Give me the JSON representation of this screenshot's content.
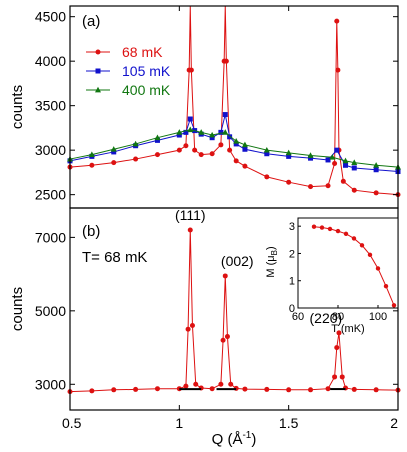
{
  "chart_data": [
    {
      "panel": "(a)",
      "type": "line",
      "ylabel": "counts",
      "xlim": [
        0.5,
        2.0
      ],
      "ylim": [
        2350,
        4620
      ],
      "yticks": [
        2500,
        3000,
        3500,
        4000,
        4500
      ],
      "legend": "top-left",
      "series": [
        {
          "name": "68 mK",
          "color": "#dd1111",
          "marker": "circle",
          "x": [
            0.5,
            0.6,
            0.7,
            0.8,
            0.9,
            1.0,
            1.03,
            1.045,
            1.05,
            1.055,
            1.07,
            1.1,
            1.15,
            1.19,
            1.205,
            1.21,
            1.215,
            1.23,
            1.26,
            1.3,
            1.4,
            1.5,
            1.6,
            1.68,
            1.71,
            1.72,
            1.725,
            1.73,
            1.75,
            1.8,
            1.9,
            2.0
          ],
          "y": [
            2810,
            2830,
            2860,
            2900,
            2950,
            3000,
            3050,
            3900,
            4620,
            3900,
            3000,
            2950,
            2960,
            3060,
            4000,
            4620,
            4000,
            3000,
            2880,
            2820,
            2700,
            2640,
            2590,
            2600,
            2850,
            4450,
            3900,
            3000,
            2650,
            2550,
            2520,
            2500
          ]
        },
        {
          "name": "105 mK",
          "color": "#1111cc",
          "marker": "square",
          "x": [
            0.5,
            0.6,
            0.7,
            0.8,
            0.9,
            1.0,
            1.03,
            1.05,
            1.07,
            1.1,
            1.15,
            1.19,
            1.21,
            1.23,
            1.26,
            1.3,
            1.4,
            1.5,
            1.6,
            1.68,
            1.72,
            1.76,
            1.8,
            1.9,
            2.0
          ],
          "y": [
            2880,
            2930,
            2980,
            3050,
            3110,
            3170,
            3200,
            3350,
            3220,
            3180,
            3140,
            3200,
            3400,
            3150,
            3070,
            3010,
            2960,
            2930,
            2910,
            2890,
            3000,
            2830,
            2800,
            2780,
            2760
          ]
        },
        {
          "name": "400 mK",
          "color": "#117711",
          "marker": "triangle",
          "x": [
            0.5,
            0.6,
            0.7,
            0.8,
            0.9,
            1.0,
            1.05,
            1.1,
            1.15,
            1.21,
            1.26,
            1.3,
            1.4,
            1.5,
            1.6,
            1.7,
            1.76,
            1.8,
            1.9,
            2.0
          ],
          "y": [
            2900,
            2950,
            3010,
            3070,
            3140,
            3200,
            3230,
            3200,
            3170,
            3200,
            3100,
            3060,
            3000,
            2970,
            2940,
            2920,
            2880,
            2860,
            2830,
            2810
          ]
        }
      ]
    },
    {
      "panel": "(b)",
      "type": "line",
      "annotation": "T= 68 mK",
      "xlabel_main": "Q (Å",
      "xlabel_sup": "-1",
      "xlabel_close": ")",
      "ylabel": "counts",
      "xlim": [
        0.5,
        2.0
      ],
      "ylim": [
        2300,
        7800
      ],
      "xticks": [
        0.5,
        1.0,
        1.5,
        2.0
      ],
      "xticklabels": [
        "0.5",
        "1",
        "1.5",
        "2"
      ],
      "yticks": [
        3000,
        5000,
        7000
      ],
      "peaks": [
        {
          "label": "(111)",
          "x": 1.05,
          "y": 7200
        },
        {
          "label": "(002)",
          "x": 1.21,
          "y": 5950
        },
        {
          "label": "(220)",
          "x": 1.725,
          "y": 4400
        }
      ],
      "series": [
        {
          "name": "",
          "color": "#dd1111",
          "marker": "circle",
          "x": [
            0.5,
            0.6,
            0.7,
            0.8,
            0.9,
            1.0,
            1.03,
            1.04,
            1.05,
            1.06,
            1.075,
            1.1,
            1.15,
            1.19,
            1.2,
            1.21,
            1.22,
            1.235,
            1.26,
            1.3,
            1.4,
            1.5,
            1.6,
            1.68,
            1.71,
            1.72,
            1.73,
            1.745,
            1.76,
            1.8,
            1.9,
            2.0
          ],
          "y": [
            2800,
            2820,
            2850,
            2860,
            2880,
            2880,
            2950,
            4500,
            7200,
            4600,
            3000,
            2900,
            2880,
            3000,
            4200,
            5950,
            4300,
            3000,
            2890,
            2870,
            2860,
            2850,
            2850,
            2880,
            3200,
            4000,
            4400,
            3200,
            2900,
            2860,
            2850,
            2840
          ]
        }
      ],
      "fit_segments": [
        [
          1.0,
          1.1
        ],
        [
          1.17,
          1.26
        ],
        [
          1.69,
          1.76
        ]
      ],
      "inset": {
        "type": "line",
        "xlabel": "T (mK)",
        "ylabel_main": "M (μ",
        "ylabel_sub": "B",
        "ylabel_close": ")",
        "xlim": [
          60,
          110
        ],
        "ylim": [
          0,
          3.3
        ],
        "xticks": [
          60,
          80,
          100
        ],
        "yticks": [
          0,
          1,
          2,
          3
        ],
        "x": [
          68,
          72,
          76,
          80,
          84,
          88,
          92,
          96,
          100,
          104,
          108
        ],
        "y": [
          2.98,
          2.95,
          2.9,
          2.82,
          2.72,
          2.55,
          2.3,
          1.95,
          1.45,
          0.8,
          0.1
        ],
        "color": "#dd1111"
      }
    }
  ],
  "colors": {
    "axis": "#000000",
    "fit": "#000000"
  }
}
